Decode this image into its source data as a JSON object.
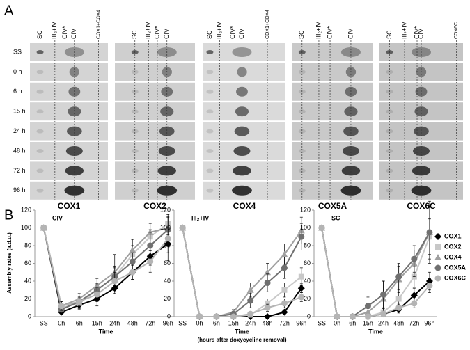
{
  "panel_a": {
    "label": "A",
    "rows": [
      "SS",
      "0 h",
      "6 h",
      "15 h",
      "24 h",
      "48 h",
      "72 h",
      "96 h"
    ],
    "gels": [
      {
        "name": "COX1",
        "columns": [
          "SC",
          "III₂+IV",
          "CIV*",
          "CIV",
          "COX1+COX4"
        ]
      },
      {
        "name": "COX2",
        "columns": [
          "SC",
          "III₂+IV",
          "CIV*",
          "CIV"
        ]
      },
      {
        "name": "COX4",
        "columns": [
          "SC",
          "III₂+IV",
          "CIV*",
          "CIV",
          "COX1+COX4"
        ]
      },
      {
        "name": "COX5A",
        "columns": [
          "SC",
          "III₂+IV",
          "CIV*",
          "CIV"
        ]
      },
      {
        "name": "COX6C",
        "columns": [
          "SC",
          "III₂+IV",
          "CIV*",
          "CIV",
          "COX6C"
        ]
      }
    ]
  },
  "panel_b": {
    "label": "B",
    "ylabel": "Assembly rates (a.d.u.)"
  },
  "chart_data": [
    {
      "type": "line",
      "title": "CIV",
      "xlabel": "Time",
      "categories": [
        "SS",
        "0h",
        "6h",
        "15h",
        "24h",
        "48h",
        "72h",
        "96h"
      ],
      "ylim": [
        0,
        120
      ],
      "yticks": [
        0,
        20,
        40,
        60,
        80,
        100,
        120
      ],
      "series": [
        {
          "name": "COX1",
          "color": "#000000",
          "marker": "diamond",
          "values": [
            100,
            5,
            13,
            20,
            32,
            50,
            68,
            82
          ],
          "errors": [
            0,
            3,
            5,
            8,
            6,
            8,
            10,
            10
          ]
        },
        {
          "name": "COX2",
          "color": "#c8c8c8",
          "marker": "square",
          "values": [
            100,
            10,
            15,
            30,
            45,
            70,
            90,
            105
          ],
          "errors": [
            0,
            4,
            6,
            8,
            10,
            10,
            8,
            10
          ]
        },
        {
          "name": "COX4",
          "color": "#a0a0a0",
          "marker": "triangle",
          "values": [
            100,
            12,
            20,
            35,
            50,
            75,
            95,
            100
          ],
          "errors": [
            0,
            5,
            6,
            8,
            20,
            12,
            10,
            12
          ]
        },
        {
          "name": "COX5A",
          "color": "#707070",
          "marker": "circle",
          "values": [
            100,
            8,
            17,
            30,
            45,
            62,
            80,
            98
          ],
          "errors": [
            0,
            4,
            5,
            7,
            12,
            10,
            15,
            15
          ]
        },
        {
          "name": "COX6C",
          "color": "#b4b4b4",
          "marker": "circle",
          "values": [
            100,
            12,
            17,
            25,
            40,
            50,
            62,
            88
          ],
          "errors": [
            0,
            5,
            6,
            8,
            10,
            8,
            12,
            25
          ]
        }
      ]
    },
    {
      "type": "line",
      "title": "III₂+IV",
      "xlabel": "Time",
      "subtitle": "(hours after doxycycline removal)",
      "categories": [
        "SS",
        "0h",
        "6h",
        "15h",
        "24h",
        "48h",
        "72h",
        "96h"
      ],
      "ylim": [
        0,
        120
      ],
      "yticks": [
        0,
        20,
        40,
        60,
        80,
        100,
        120
      ],
      "series": [
        {
          "name": "COX1",
          "color": "#000000",
          "marker": "diamond",
          "values": [
            100,
            0,
            0,
            0,
            0,
            0,
            5,
            32
          ],
          "errors": [
            0,
            0,
            0,
            0,
            0,
            0,
            2,
            5
          ]
        },
        {
          "name": "COX2",
          "color": "#c8c8c8",
          "marker": "square",
          "values": [
            100,
            0,
            0,
            0,
            2,
            15,
            30,
            45
          ],
          "errors": [
            0,
            0,
            0,
            0,
            2,
            5,
            8,
            10
          ]
        },
        {
          "name": "COX4",
          "color": "#a0a0a0",
          "marker": "triangle",
          "values": [
            100,
            0,
            0,
            5,
            30,
            50,
            70,
            97
          ],
          "errors": [
            0,
            0,
            0,
            3,
            8,
            10,
            12,
            15
          ]
        },
        {
          "name": "COX5A",
          "color": "#707070",
          "marker": "circle",
          "values": [
            100,
            0,
            0,
            3,
            18,
            38,
            55,
            90
          ],
          "errors": [
            0,
            0,
            0,
            3,
            8,
            10,
            12,
            15
          ]
        },
        {
          "name": "COX6C",
          "color": "#b4b4b4",
          "marker": "circle",
          "values": [
            100,
            0,
            0,
            0,
            3,
            10,
            15,
            22
          ],
          "errors": [
            0,
            0,
            0,
            0,
            2,
            4,
            5,
            5
          ]
        }
      ]
    },
    {
      "type": "line",
      "title": "SC",
      "xlabel": "Time",
      "categories": [
        "SS",
        "0h",
        "6h",
        "15h",
        "24h",
        "48h",
        "72h",
        "96h"
      ],
      "ylim": [
        0,
        120
      ],
      "yticks": [
        0,
        20,
        40,
        60,
        80,
        100,
        120
      ],
      "series": [
        {
          "name": "COX1",
          "color": "#000000",
          "marker": "diamond",
          "values": [
            100,
            0,
            0,
            0,
            3,
            8,
            24,
            40
          ],
          "errors": [
            0,
            0,
            0,
            0,
            2,
            4,
            8,
            10
          ]
        },
        {
          "name": "COX2",
          "color": "#c8c8c8",
          "marker": "square",
          "values": [
            100,
            0,
            0,
            0,
            5,
            20,
            45,
            90
          ],
          "errors": [
            0,
            0,
            0,
            0,
            4,
            8,
            12,
            20
          ]
        },
        {
          "name": "COX4",
          "color": "#a0a0a0",
          "marker": "triangle",
          "values": [
            100,
            0,
            0,
            5,
            20,
            42,
            60,
            95
          ],
          "errors": [
            0,
            0,
            0,
            8,
            20,
            15,
            15,
            35
          ]
        },
        {
          "name": "COX5A",
          "color": "#707070",
          "marker": "circle",
          "values": [
            100,
            0,
            0,
            12,
            25,
            45,
            65,
            95
          ],
          "errors": [
            0,
            0,
            0,
            10,
            15,
            15,
            15,
            30
          ]
        },
        {
          "name": "COX6C",
          "color": "#b4b4b4",
          "marker": "circle",
          "values": [
            100,
            0,
            0,
            0,
            3,
            10,
            15,
            35
          ],
          "errors": [
            0,
            0,
            0,
            0,
            2,
            4,
            5,
            8
          ]
        }
      ]
    }
  ]
}
